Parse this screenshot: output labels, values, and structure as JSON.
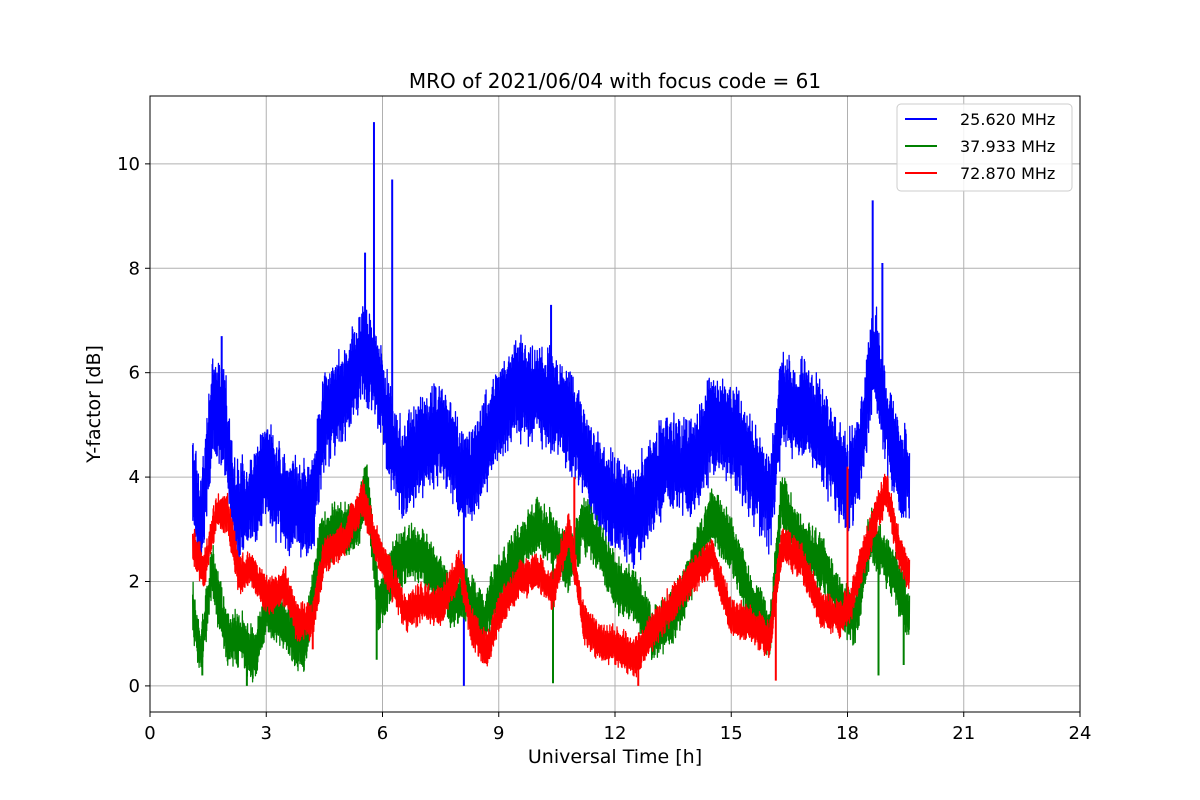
{
  "chart_data": {
    "type": "line",
    "title": "MRO of 2021/06/04 with focus code = 61",
    "xlabel": "Universal Time [h]",
    "ylabel": "Y-factor [dB]",
    "xlim": [
      0,
      24
    ],
    "ylim": [
      -0.5,
      11.3
    ],
    "xticks": [
      "0",
      "3",
      "6",
      "9",
      "12",
      "15",
      "18",
      "21",
      "24"
    ],
    "yticks": [
      "0",
      "2",
      "4",
      "6",
      "8",
      "10"
    ],
    "grid": true,
    "legend_position": "top-right",
    "series": [
      {
        "name": "25.620 MHz",
        "color": "#0000ff",
        "noise_amplitude": 0.9,
        "x": [
          1.1,
          1.3,
          1.6,
          1.9,
          2.2,
          2.6,
          3.0,
          3.4,
          3.8,
          4.2,
          4.5,
          5.0,
          5.5,
          5.8,
          6.2,
          6.5,
          7.0,
          7.5,
          8.0,
          8.3,
          8.6,
          9.0,
          9.5,
          10.0,
          10.5,
          11.0,
          11.5,
          12.0,
          12.5,
          13.0,
          13.5,
          14.0,
          14.5,
          15.0,
          15.5,
          16.0,
          16.3,
          16.6,
          17.0,
          17.5,
          18.0,
          18.3,
          18.7,
          19.0,
          19.3,
          19.6
        ],
        "y": [
          4.0,
          3.0,
          5.2,
          5.3,
          3.3,
          3.4,
          4.2,
          3.6,
          3.4,
          3.4,
          5.2,
          5.5,
          6.4,
          6.1,
          4.8,
          4.1,
          4.6,
          4.9,
          4.1,
          4.0,
          4.6,
          5.2,
          5.7,
          5.6,
          5.4,
          4.9,
          3.9,
          3.5,
          3.2,
          4.0,
          4.3,
          4.2,
          5.0,
          4.9,
          4.2,
          3.5,
          5.5,
          5.3,
          5.2,
          4.6,
          3.8,
          4.4,
          6.4,
          5.1,
          4.1,
          4.0
        ],
        "spikes": [
          [
            5.78,
            10.8
          ],
          [
            6.25,
            9.7
          ],
          [
            5.55,
            8.3
          ],
          [
            18.65,
            9.3
          ],
          [
            18.9,
            8.1
          ],
          [
            8.1,
            0.0
          ],
          [
            1.85,
            6.7
          ],
          [
            10.35,
            7.3
          ]
        ]
      },
      {
        "name": "37.933 MHz",
        "color": "#008000",
        "noise_amplitude": 0.5,
        "x": [
          1.1,
          1.3,
          1.6,
          2.0,
          2.4,
          2.7,
          3.0,
          3.5,
          4.0,
          4.4,
          4.8,
          5.3,
          5.6,
          5.9,
          6.3,
          6.8,
          7.3,
          7.8,
          8.2,
          8.6,
          9.0,
          9.5,
          10.0,
          10.4,
          10.8,
          11.2,
          11.5,
          12.0,
          12.5,
          13.0,
          13.5,
          14.0,
          14.5,
          15.0,
          15.5,
          16.0,
          16.3,
          16.8,
          17.3,
          17.8,
          18.2,
          18.6,
          19.0,
          19.4,
          19.6
        ],
        "y": [
          1.5,
          0.6,
          2.2,
          0.9,
          0.9,
          0.5,
          1.5,
          1.1,
          0.7,
          2.7,
          3.0,
          3.0,
          3.8,
          1.5,
          2.3,
          2.6,
          2.2,
          1.6,
          1.8,
          1.2,
          2.0,
          2.5,
          3.1,
          2.8,
          2.3,
          3.1,
          2.8,
          2.0,
          1.7,
          1.0,
          1.3,
          2.2,
          3.3,
          2.7,
          1.7,
          1.0,
          3.6,
          2.7,
          2.4,
          1.6,
          1.3,
          2.9,
          2.4,
          1.8,
          1.3
        ],
        "spikes": [
          [
            2.5,
            0.0
          ],
          [
            1.35,
            0.2
          ],
          [
            5.85,
            0.5
          ],
          [
            10.4,
            0.05
          ],
          [
            18.8,
            0.2
          ],
          [
            19.45,
            0.4
          ]
        ]
      },
      {
        "name": "72.870 MHz",
        "color": "#ff0000",
        "noise_amplitude": 0.35,
        "x": [
          1.1,
          1.4,
          1.7,
          2.0,
          2.3,
          2.6,
          3.0,
          3.5,
          3.8,
          4.2,
          4.5,
          5.0,
          5.5,
          5.8,
          6.2,
          6.6,
          7.0,
          7.5,
          8.0,
          8.3,
          8.7,
          9.0,
          9.5,
          10.0,
          10.4,
          10.8,
          11.2,
          11.6,
          12.0,
          12.5,
          13.0,
          13.5,
          14.0,
          14.5,
          15.0,
          15.5,
          16.0,
          16.3,
          16.8,
          17.3,
          17.8,
          18.1,
          18.5,
          19.0,
          19.3,
          19.6
        ],
        "y": [
          2.7,
          2.2,
          3.3,
          3.3,
          2.1,
          2.3,
          1.7,
          1.9,
          1.2,
          1.3,
          2.5,
          2.8,
          3.6,
          2.8,
          2.1,
          1.4,
          1.6,
          1.5,
          2.3,
          1.1,
          0.7,
          1.4,
          2.0,
          2.2,
          1.8,
          3.0,
          1.2,
          0.8,
          0.8,
          0.5,
          1.1,
          1.6,
          2.1,
          2.5,
          1.3,
          1.2,
          0.9,
          2.7,
          2.4,
          1.5,
          1.3,
          1.6,
          2.7,
          3.8,
          2.7,
          2.1
        ],
        "spikes": [
          [
            12.6,
            0.0
          ],
          [
            16.15,
            0.1
          ],
          [
            10.95,
            4.0
          ],
          [
            18.0,
            4.2
          ],
          [
            4.2,
            0.7
          ]
        ]
      }
    ]
  }
}
